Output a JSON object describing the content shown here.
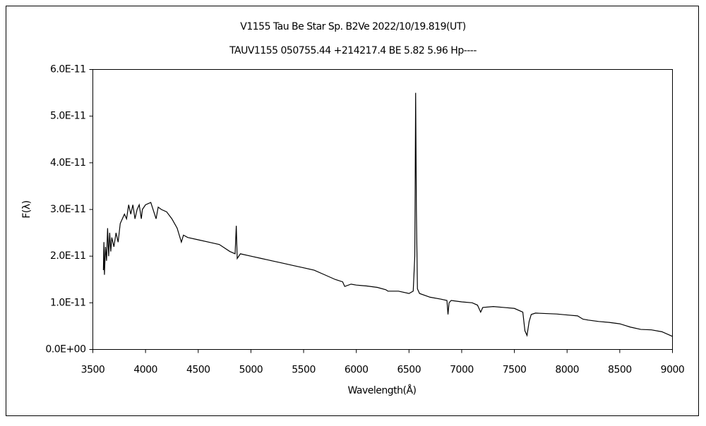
{
  "chart_data": {
    "type": "line",
    "title": "V1155 Tau   Be Star   Sp. B2Ve   2022/10/19.819(UT)",
    "subtitle": "TAUV1155 050755.44 +214217.4 BE 5.82 5.96 Hp----",
    "x_label": "Wavelength(Å)",
    "y_label": "F(λ)",
    "xlim": [
      3500,
      9000
    ],
    "xticks": [
      3500,
      4000,
      4500,
      5000,
      5500,
      6000,
      6500,
      7000,
      7500,
      8000,
      8500,
      9000
    ],
    "ylim": [
      0,
      6e-11
    ],
    "yticks": [
      {
        "value": 0,
        "label": "0.0E+00"
      },
      {
        "value": 1e-11,
        "label": "1.0E-11"
      },
      {
        "value": 2e-11,
        "label": "2.0E-11"
      },
      {
        "value": 3e-11,
        "label": "3.0E-11"
      },
      {
        "value": 4e-11,
        "label": "4.0E-11"
      },
      {
        "value": 5e-11,
        "label": "5.0E-11"
      },
      {
        "value": 6e-11,
        "label": "6.0E-11"
      }
    ],
    "grid": false,
    "x": [
      3600,
      3605,
      3610,
      3620,
      3630,
      3640,
      3650,
      3660,
      3670,
      3680,
      3700,
      3720,
      3740,
      3760,
      3780,
      3800,
      3820,
      3840,
      3860,
      3880,
      3900,
      3920,
      3940,
      3960,
      3970,
      4000,
      4050,
      4100,
      4120,
      4150,
      4200,
      4250,
      4300,
      4340,
      4360,
      4400,
      4500,
      4600,
      4700,
      4800,
      4850,
      4861,
      4870,
      4900,
      5000,
      5100,
      5200,
      5300,
      5400,
      5500,
      5600,
      5700,
      5800,
      5870,
      5890,
      5950,
      6000,
      6100,
      6200,
      6280,
      6300,
      6400,
      6500,
      6540,
      6555,
      6563,
      6570,
      6580,
      6600,
      6700,
      6800,
      6860,
      6870,
      6880,
      6900,
      7000,
      7100,
      7150,
      7180,
      7200,
      7300,
      7400,
      7500,
      7580,
      7600,
      7620,
      7640,
      7660,
      7700,
      7800,
      7900,
      8000,
      8100,
      8150,
      8200,
      8300,
      8400,
      8500,
      8600,
      8700,
      8800,
      8900,
      9000
    ],
    "series": [
      {
        "name": "F",
        "color": "#000000",
        "values": [
          1.7e-11,
          2.3e-11,
          1.6e-11,
          2.2e-11,
          1.9e-11,
          2.6e-11,
          2e-11,
          2.5e-11,
          2.1e-11,
          2.4e-11,
          2.2e-11,
          2.5e-11,
          2.3e-11,
          2.7e-11,
          2.8e-11,
          2.9e-11,
          2.8e-11,
          3.1e-11,
          2.9e-11,
          3.1e-11,
          2.8e-11,
          3e-11,
          3.1e-11,
          2.8e-11,
          3e-11,
          3.1e-11,
          3.15e-11,
          2.8e-11,
          3.05e-11,
          3e-11,
          2.95e-11,
          2.8e-11,
          2.6e-11,
          2.3e-11,
          2.45e-11,
          2.4e-11,
          2.35e-11,
          2.3e-11,
          2.25e-11,
          2.1e-11,
          2.05e-11,
          2.65e-11,
          1.95e-11,
          2.05e-11,
          2e-11,
          1.95e-11,
          1.9e-11,
          1.85e-11,
          1.8e-11,
          1.75e-11,
          1.7e-11,
          1.6e-11,
          1.5e-11,
          1.45e-11,
          1.35e-11,
          1.4e-11,
          1.38e-11,
          1.36e-11,
          1.33e-11,
          1.28e-11,
          1.25e-11,
          1.25e-11,
          1.2e-11,
          1.25e-11,
          2e-11,
          5.5e-11,
          3e-11,
          1.3e-11,
          1.2e-11,
          1.12e-11,
          1.08e-11,
          1.05e-11,
          7.5e-12,
          1e-11,
          1.05e-11,
          1.02e-11,
          1e-11,
          9.5e-12,
          8e-12,
          9e-12,
          9.2e-12,
          9e-12,
          8.8e-12,
          8e-12,
          4e-12,
          3e-12,
          6e-12,
          7.5e-12,
          7.8e-12,
          7.7e-12,
          7.6e-12,
          7.4e-12,
          7.2e-12,
          6.5e-12,
          6.3e-12,
          6e-12,
          5.8e-12,
          5.5e-12,
          4.8e-12,
          4.3e-12,
          4.2e-12,
          3.8e-12,
          2.8e-12
        ]
      }
    ]
  }
}
